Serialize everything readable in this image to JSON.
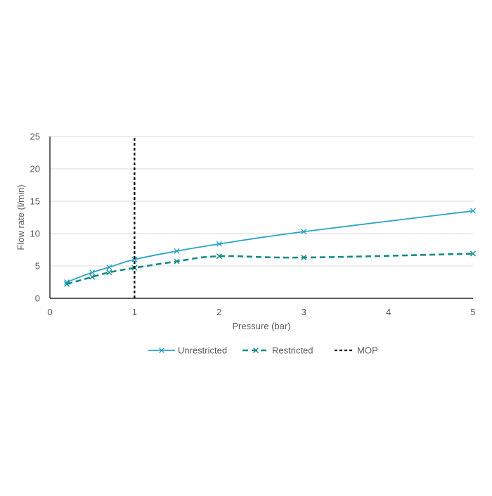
{
  "chart_data": {
    "type": "line",
    "title": "",
    "xlabel": "Pressure (bar)",
    "ylabel": "Flow rate (l/min)",
    "xlim": [
      0,
      5
    ],
    "ylim": [
      0,
      25
    ],
    "x_ticks": [
      "0",
      "1",
      "2",
      "3",
      "4",
      "5"
    ],
    "y_ticks": [
      "0",
      "5",
      "10",
      "15",
      "20",
      "25"
    ],
    "grid": "horizontal",
    "legend_position": "bottom",
    "series": [
      {
        "name": "Unrestricted",
        "color": "#2AA3C6",
        "style": "solid",
        "marker": "x",
        "x": [
          0.2,
          0.5,
          0.7,
          1.0,
          1.5,
          2.0,
          3.0,
          5.0
        ],
        "y": [
          2.5,
          4.0,
          4.8,
          6.0,
          7.3,
          8.4,
          10.3,
          13.5
        ]
      },
      {
        "name": "Restricted",
        "color": "#158A8A",
        "style": "dashed",
        "marker": "x",
        "x": [
          0.2,
          0.5,
          0.7,
          1.0,
          1.5,
          2.0,
          3.0,
          5.0
        ],
        "y": [
          2.2,
          3.3,
          4.0,
          4.7,
          5.7,
          6.5,
          6.3,
          6.9
        ]
      },
      {
        "name": "MOP",
        "color": "#000000",
        "style": "dashed",
        "marker": "none",
        "x": [
          1.0,
          1.0
        ],
        "y": [
          0,
          25
        ]
      }
    ]
  }
}
